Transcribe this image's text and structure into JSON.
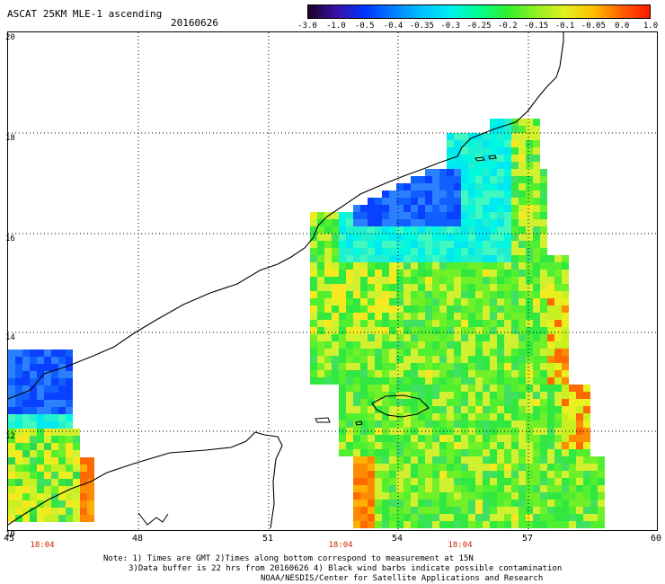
{
  "header": {
    "title": "ASCAT 25KM MLE-1 ascending",
    "date": "20160626"
  },
  "colorbar": {
    "labels": [
      "-3.0",
      "-1.0",
      "-0.5",
      "-0.4",
      "-0.35",
      "-0.3",
      "-0.25",
      "-0.2",
      "-0.15",
      "-0.1",
      "-0.05",
      "0.0",
      "1.0"
    ],
    "colors": [
      "#1a0028",
      "#3a10a8",
      "#0033ff",
      "#0080ff",
      "#00c0ff",
      "#00f0f0",
      "#00ff90",
      "#30f030",
      "#90f020",
      "#e0f020",
      "#ffc000",
      "#ff6000",
      "#ff1800"
    ]
  },
  "axes": {
    "lat_labels": [
      "20",
      "18",
      "16",
      "14",
      "12",
      "10"
    ],
    "lon_labels": [
      "45",
      "48",
      "51",
      "54",
      "57",
      "60"
    ],
    "time_labels": [
      "18:04",
      "18:04",
      "18:04"
    ]
  },
  "notes": {
    "line1": "Note: 1) Times are GMT 2)Times along bottom correspond to measurement at 15N",
    "line2": "3)Data buffer is 22 hrs from 20160626 4) Black wind barbs indicate possible contamination",
    "line3": "NOAA/NESDIS/Center for Satellite Applications and Research"
  }
}
